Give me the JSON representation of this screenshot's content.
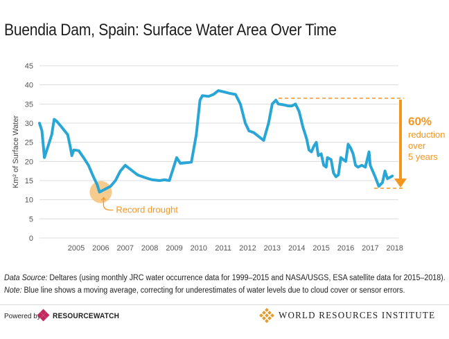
{
  "title": "Buendia Dam, Spain: Surface Water Area Over Time",
  "chart_data": {
    "type": "line",
    "title": "Buendia Dam, Spain: Surface Water Area Over Time",
    "ylabel": "Km² of Surface Water",
    "xlabel": "",
    "ylim": [
      0,
      45
    ],
    "yticks": [
      0,
      5,
      10,
      15,
      20,
      25,
      30,
      35,
      40,
      45
    ],
    "xticks": [
      "2005",
      "2006",
      "2007",
      "2008",
      "2009",
      "2010",
      "2011",
      "2012",
      "2013",
      "2014",
      "2015",
      "2016",
      "2017",
      "2018"
    ],
    "grid": true,
    "series": [
      {
        "color": "#2aa6d6",
        "points": [
          [
            2004.0,
            30.0
          ],
          [
            2004.1,
            28.0
          ],
          [
            2004.2,
            21.0
          ],
          [
            2004.35,
            24.0
          ],
          [
            2004.5,
            27.0
          ],
          [
            2004.55,
            29.0
          ],
          [
            2004.6,
            31.0
          ],
          [
            2004.7,
            30.5
          ],
          [
            2004.9,
            29.0
          ],
          [
            2005.15,
            27.0
          ],
          [
            2005.25,
            24.0
          ],
          [
            2005.32,
            21.5
          ],
          [
            2005.4,
            23.0
          ],
          [
            2005.6,
            22.8
          ],
          [
            2005.8,
            21.0
          ],
          [
            2006.0,
            19.0
          ],
          [
            2006.2,
            16.0
          ],
          [
            2006.35,
            14.0
          ],
          [
            2006.45,
            12.0
          ],
          [
            2006.9,
            13.5
          ],
          [
            2007.1,
            15.0
          ],
          [
            2007.3,
            17.5
          ],
          [
            2007.5,
            19.0
          ],
          [
            2007.7,
            18.0
          ],
          [
            2008.0,
            16.5
          ],
          [
            2008.3,
            15.8
          ],
          [
            2008.6,
            15.2
          ],
          [
            2008.9,
            15.0
          ],
          [
            2009.1,
            15.2
          ],
          [
            2009.3,
            15.0
          ],
          [
            2009.45,
            18.0
          ],
          [
            2009.6,
            21.0
          ],
          [
            2009.75,
            19.5
          ],
          [
            2010.2,
            19.8
          ],
          [
            2010.4,
            27.0
          ],
          [
            2010.55,
            36.0
          ],
          [
            2010.65,
            37.2
          ],
          [
            2010.9,
            37.0
          ],
          [
            2011.1,
            37.5
          ],
          [
            2011.3,
            38.5
          ],
          [
            2011.5,
            38.2
          ],
          [
            2011.75,
            37.8
          ],
          [
            2012.0,
            37.5
          ],
          [
            2012.2,
            35.0
          ],
          [
            2012.4,
            30.0
          ],
          [
            2012.55,
            28.0
          ],
          [
            2012.75,
            27.5
          ],
          [
            2012.95,
            26.5
          ],
          [
            2013.15,
            25.5
          ],
          [
            2013.35,
            30.0
          ],
          [
            2013.5,
            35.0
          ],
          [
            2013.65,
            36.0
          ],
          [
            2013.75,
            35.0
          ],
          [
            2013.95,
            34.8
          ],
          [
            2014.15,
            34.5
          ],
          [
            2014.3,
            34.5
          ],
          [
            2014.45,
            35.0
          ],
          [
            2014.6,
            33.0
          ],
          [
            2014.75,
            29.0
          ],
          [
            2014.9,
            26.0
          ],
          [
            2015.0,
            23.0
          ],
          [
            2015.1,
            22.5
          ],
          [
            2015.2,
            24.0
          ],
          [
            2015.3,
            25.0
          ],
          [
            2015.38,
            21.5
          ],
          [
            2015.5,
            22.0
          ],
          [
            2015.6,
            19.0
          ],
          [
            2015.7,
            18.5
          ],
          [
            2015.75,
            21.0
          ],
          [
            2015.9,
            20.5
          ],
          [
            2016.0,
            17.0
          ],
          [
            2016.1,
            16.0
          ],
          [
            2016.2,
            16.5
          ],
          [
            2016.3,
            21.0
          ],
          [
            2016.4,
            20.5
          ],
          [
            2016.5,
            20.0
          ],
          [
            2016.6,
            24.5
          ],
          [
            2016.7,
            23.5
          ],
          [
            2016.8,
            22.0
          ],
          [
            2016.9,
            19.0
          ],
          [
            2017.0,
            18.5
          ],
          [
            2017.15,
            19.0
          ],
          [
            2017.3,
            18.5
          ],
          [
            2017.45,
            22.5
          ],
          [
            2017.5,
            19.0
          ],
          [
            2017.7,
            16.0
          ],
          [
            2017.85,
            13.5
          ],
          [
            2018.0,
            14.5
          ],
          [
            2018.1,
            17.5
          ],
          [
            2018.2,
            15.5
          ],
          [
            2018.35,
            16.0
          ],
          [
            2018.4,
            16.2
          ]
        ]
      }
    ],
    "annotations": [
      {
        "text": "Record drought",
        "x": 2006.5,
        "y": 12.0
      },
      {
        "highlight": "60%",
        "text": [
          "reduction",
          "over",
          "5 years"
        ],
        "from_y": 36.5,
        "to_y": 13.0
      }
    ]
  },
  "source": {
    "label": "Data Source:",
    "text": " Deltares (using monthly JRC water occurrence data for 1999–2015 and NASA/USGS, ESA satellite data for 2015–2018).",
    "note_label": "Note:",
    "note_text": " Blue line shows a moving average, correcting for underestimates of water levels due to cloud cover or sensor errors."
  },
  "footer": {
    "powered_by": "Powered by",
    "resourcewatch": "RESOURCEWATCH",
    "wri": "WORLD RESOURCES INSTITUTE"
  },
  "colors": {
    "line": "#2aa6d6",
    "accent": "#f5961f",
    "drought_circle": "#f6c27a"
  },
  "icons": {
    "resourcewatch_logo": "resourcewatch-logo-icon",
    "wri_logo": "wri-logo-icon"
  }
}
